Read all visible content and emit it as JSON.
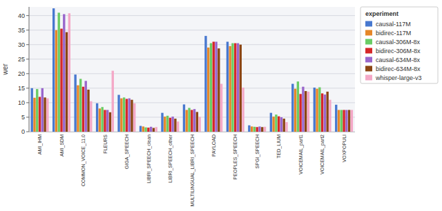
{
  "chart_data": {
    "type": "bar",
    "ylabel": "wer",
    "legend_title": "experiment",
    "categories": [
      "AMI_IHM",
      "AMI_SDM",
      "COMMON_VOICE_11.0",
      "FLEURS",
      "GIGA_SPEECH",
      "LIBRI_SPEECH_clean",
      "LIBRI_SPEECH_other",
      "MULTILINGUAL_LIBRI_SPEECH",
      "PAYLOAD",
      "PEOPLES_SPEECH",
      "SPGI_SPEECH",
      "TED_LIUM",
      "VOICEMAIL_part1",
      "VOICEMAIL_part2",
      "VOXPOPULI"
    ],
    "series": [
      {
        "name": "causal-117M",
        "color": "#4878CF",
        "values": [
          15.0,
          42.5,
          19.7,
          9.8,
          12.7,
          2.0,
          6.5,
          9.4,
          33.0,
          31.0,
          2.2,
          6.5,
          16.5,
          15.2,
          9.3
        ]
      },
      {
        "name": "bidirec-117M",
        "color": "#E68728",
        "values": [
          11.7,
          35.0,
          16.0,
          8.0,
          11.5,
          1.8,
          5.2,
          7.5,
          29.0,
          29.5,
          1.8,
          5.2,
          14.8,
          14.8,
          7.5
        ]
      },
      {
        "name": "causal-306M-8x",
        "color": "#6ACC65",
        "values": [
          14.7,
          41.0,
          18.2,
          8.5,
          11.8,
          1.5,
          5.5,
          8.2,
          30.5,
          30.5,
          1.7,
          5.9,
          17.3,
          15.3,
          7.5
        ]
      },
      {
        "name": "bidirec-306M-8x",
        "color": "#D62728",
        "values": [
          12.0,
          35.5,
          15.5,
          7.5,
          11.3,
          1.4,
          4.8,
          7.5,
          31.0,
          30.5,
          1.6,
          5.3,
          13.0,
          13.2,
          7.5
        ]
      },
      {
        "name": "causal-634M-8x",
        "color": "#9966CC",
        "values": [
          15.0,
          40.5,
          17.5,
          7.5,
          11.5,
          1.7,
          5.2,
          7.8,
          31.0,
          30.5,
          1.8,
          5.0,
          15.5,
          12.8,
          7.5
        ]
      },
      {
        "name": "bidirec-634M-8x",
        "color": "#8B4513",
        "values": [
          11.8,
          34.3,
          14.5,
          6.7,
          11.0,
          1.3,
          4.5,
          6.8,
          28.7,
          30.0,
          1.6,
          4.5,
          14.0,
          13.8,
          7.5
        ]
      },
      {
        "name": "whisper-large-v3",
        "color": "#F4A8C7",
        "values": [
          11.5,
          40.8,
          10.5,
          21.0,
          9.8,
          1.6,
          3.5,
          5.1,
          16.5,
          15.2,
          1.7,
          3.3,
          13.8,
          11.0,
          7.5
        ]
      }
    ],
    "ylim": [
      0,
      43
    ],
    "yticks": [
      0,
      5,
      10,
      15,
      20,
      25,
      30,
      35,
      40
    ],
    "grid": true,
    "legend": "upper right"
  }
}
